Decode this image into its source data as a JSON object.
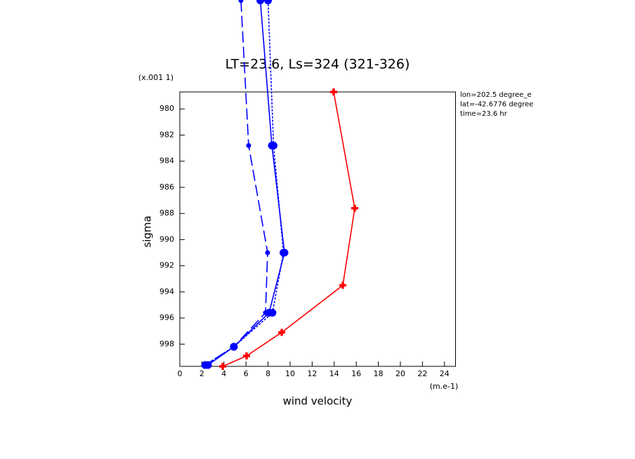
{
  "chart_data": {
    "type": "line",
    "title": "LT=23.6, Ls=324 (321-326)",
    "x_label": "wind velocity",
    "x_unit": "(m.e-1)",
    "y_label": "sigma",
    "y_unit": "(x.001 1)",
    "annotations": [
      "lon=202.5 degree_e",
      "lat=-42.6776 degree",
      "time=23.6 hr"
    ],
    "xlim": [
      0,
      25
    ],
    "xticks": [
      0,
      2,
      4,
      6,
      8,
      10,
      12,
      14,
      16,
      18,
      20,
      22,
      24
    ],
    "ylim": [
      999.7,
      978.7
    ],
    "yticks": [
      980,
      982,
      984,
      986,
      988,
      990,
      992,
      994,
      996,
      998
    ],
    "series": [
      {
        "color": "#ff0000",
        "dash": "solid",
        "marker": "plus",
        "x": [
          13.95,
          15.86,
          14.78,
          9.24,
          6.05,
          3.89
        ],
        "values": [
          978.7,
          987.6,
          993.5,
          997.1,
          998.9,
          999.7
        ]
      },
      {
        "color": "#0000ff",
        "dash": "solid",
        "marker": "circle",
        "x": [
          7.3,
          8.35,
          9.49,
          8.09,
          4.9,
          2.55
        ],
        "values": [
          971.7,
          982.8,
          991.0,
          995.6,
          998.2,
          999.6
        ]
      },
      {
        "color": "#0000ff",
        "dash": "dotted",
        "marker": "circle",
        "x": [
          8.0,
          8.5,
          9.4,
          8.4,
          4.9,
          2.3
        ],
        "values": [
          971.7,
          982.8,
          991.0,
          995.6,
          998.2,
          999.6
        ]
      },
      {
        "color": "#0000ff",
        "dash": "dashed",
        "marker": "small",
        "x": [
          5.54,
          6.24,
          7.96,
          7.77,
          4.9,
          2.3
        ],
        "values": [
          971.7,
          982.8,
          991.0,
          995.6,
          998.2,
          999.6
        ]
      }
    ]
  }
}
